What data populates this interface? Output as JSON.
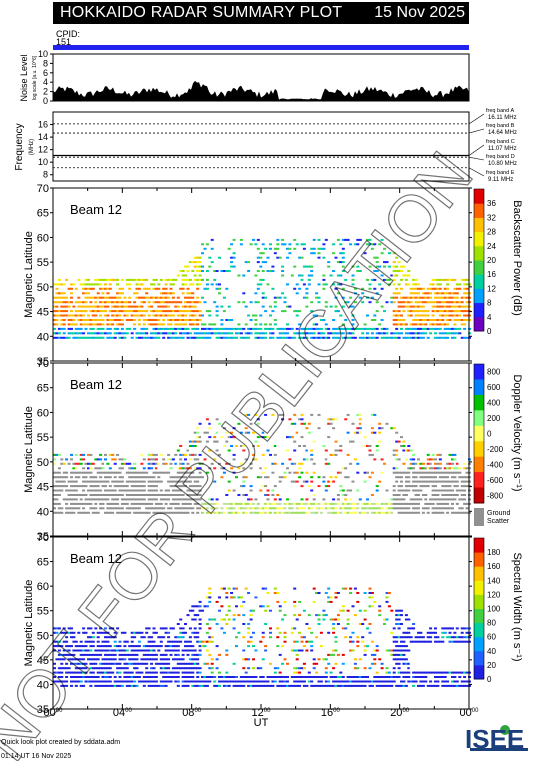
{
  "header": {
    "title": "HOKKAIDO RADAR SUMMARY PLOT",
    "date": "15 Nov 2025"
  },
  "cpid": {
    "label": "CPID:",
    "value": "151",
    "bar_color": "#2222ee"
  },
  "noise": {
    "ylabel": "Noise Level",
    "ylabel_sub": "log scale [a.u. 10^6]",
    "yticks": [
      "0",
      "2",
      "4",
      "6",
      "8",
      "10"
    ]
  },
  "frequency": {
    "ylabel": "Frequency",
    "unit": "(MHz)",
    "yticks": [
      "8",
      "10",
      "12",
      "14",
      "16"
    ],
    "bands": [
      {
        "name": "freq band A",
        "freq": "16.11 MHz"
      },
      {
        "name": "freq band B",
        "freq": "14.64 MHz"
      },
      {
        "name": "freq band C",
        "freq": "11.07 MHz"
      },
      {
        "name": "freq band D",
        "freq": "10.80 MHz"
      },
      {
        "name": "freq band E",
        "freq": "9.11 MHz"
      }
    ]
  },
  "panels": [
    {
      "beam": "Beam 12",
      "ylabel": "Magnetic Latitude",
      "yticks": [
        "35",
        "40",
        "45",
        "50",
        "55",
        "60",
        "65",
        "70"
      ],
      "cbar_label": "Backscatter Power (dB)",
      "cbar_ticks": [
        "0",
        "4",
        "8",
        "12",
        "16",
        "20",
        "24",
        "28",
        "32",
        "36"
      ]
    },
    {
      "beam": "Beam 12",
      "ylabel": "Magnetic Latitude",
      "yticks": [
        "35",
        "40",
        "45",
        "50",
        "55",
        "60",
        "65",
        "70"
      ],
      "cbar_label": "Doppler Velocity (m s⁻¹)",
      "cbar_ticks": [
        "800",
        "600",
        "400",
        "200",
        "0",
        "-200",
        "-400",
        "-600",
        "-800"
      ],
      "ground_label": [
        "Ground",
        "Scatter"
      ]
    },
    {
      "beam": "Beam 12",
      "ylabel": "Magnetic Latitude",
      "yticks": [
        "35",
        "40",
        "45",
        "50",
        "55",
        "60",
        "65",
        "70"
      ],
      "cbar_label": "Spectral Width (m s⁻¹)",
      "cbar_ticks": [
        "0",
        "20",
        "40",
        "60",
        "80",
        "100",
        "120",
        "140",
        "160",
        "180"
      ]
    }
  ],
  "xaxis": {
    "label": "UT",
    "ticks": [
      "00",
      "04",
      "08",
      "12",
      "16",
      "20",
      "00"
    ],
    "tick_sup": "00"
  },
  "watermark": "NOT FOR PUBLICATION",
  "footer": {
    "credit": "Quick look plot created by sddata.adm",
    "timestamp": "01:14 UT 16 Nov 2025",
    "logo": "ISEE"
  },
  "chart_data": [
    {
      "type": "area",
      "title": "Noise Level",
      "xlim": [
        0,
        24
      ],
      "ylim": [
        0,
        10
      ],
      "xlabel": "UT"
    },
    {
      "type": "line",
      "title": "Frequency",
      "ylim": [
        7,
        18
      ],
      "x": [
        0,
        24
      ],
      "series": [
        {
          "name": "freq band A",
          "values": [
            16.11,
            16.11
          ]
        },
        {
          "name": "freq band B",
          "values": [
            14.64,
            14.64
          ]
        },
        {
          "name": "freq band C",
          "values": [
            11.07,
            11.07
          ]
        },
        {
          "name": "freq band D",
          "values": [
            10.8,
            10.8
          ]
        },
        {
          "name": "freq band E",
          "values": [
            9.11,
            9.11
          ]
        }
      ]
    },
    {
      "type": "heatmap",
      "title": "Backscatter Power",
      "xlim": [
        0,
        24
      ],
      "ylim": [
        35,
        70
      ],
      "zlim": [
        0,
        36
      ]
    },
    {
      "type": "heatmap",
      "title": "Doppler Velocity",
      "xlim": [
        0,
        24
      ],
      "ylim": [
        35,
        70
      ],
      "zlim": [
        -800,
        800
      ]
    },
    {
      "type": "heatmap",
      "title": "Spectral Width",
      "xlim": [
        0,
        24
      ],
      "ylim": [
        35,
        70
      ],
      "zlim": [
        0,
        180
      ]
    }
  ]
}
